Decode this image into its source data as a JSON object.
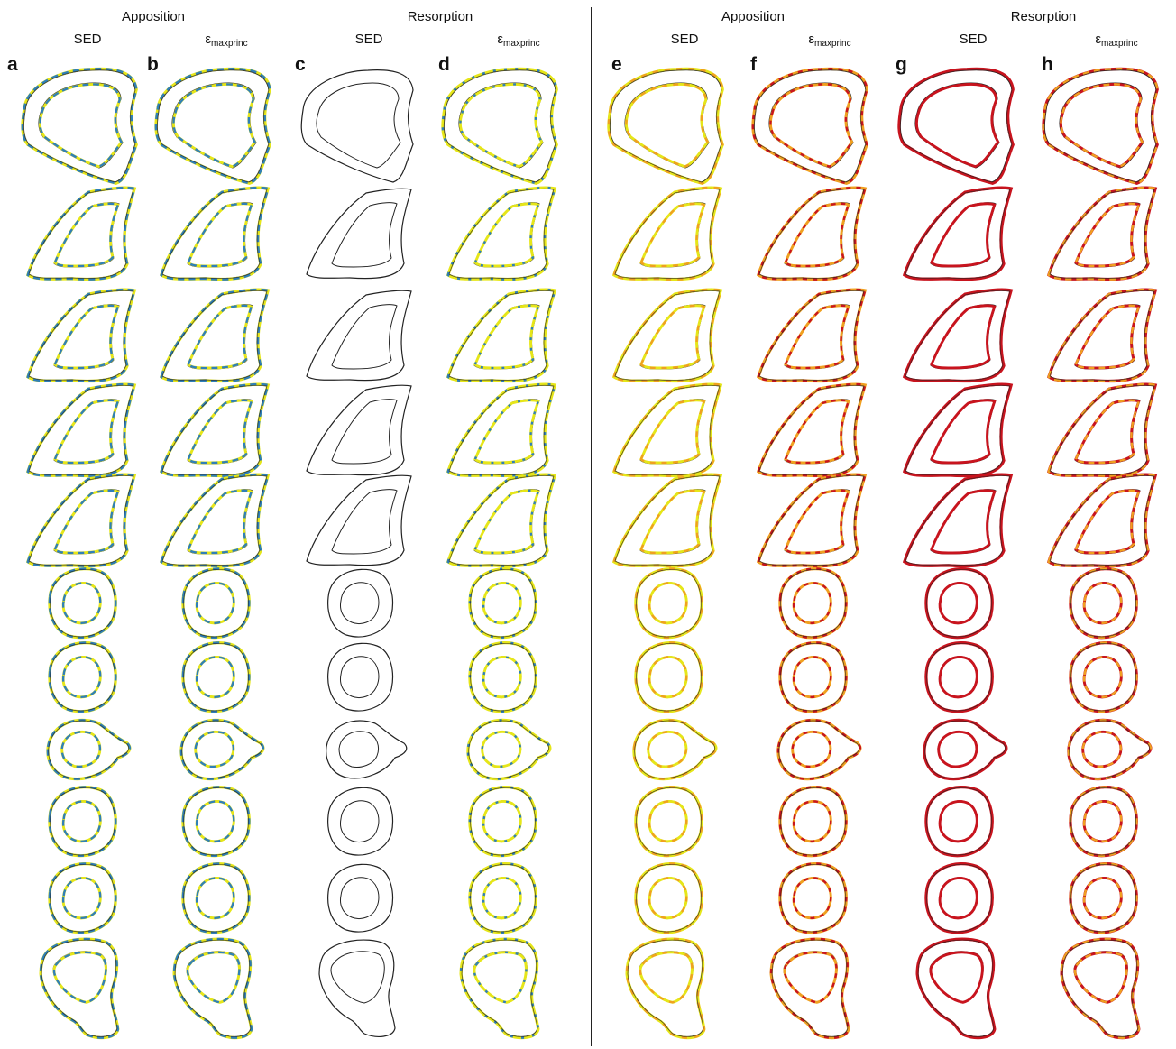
{
  "headers": {
    "left": {
      "apposition": "Apposition",
      "resorption": "Resorption"
    },
    "right": {
      "apposition": "Apposition",
      "resorption": "Resorption"
    }
  },
  "columns": [
    {
      "letter": "a",
      "metric": "SED",
      "metric_sub": ""
    },
    {
      "letter": "b",
      "metric": "ε",
      "metric_sub": "maxprinc"
    },
    {
      "letter": "c",
      "metric": "SED",
      "metric_sub": ""
    },
    {
      "letter": "d",
      "metric": "ε",
      "metric_sub": "maxprinc"
    },
    {
      "letter": "e",
      "metric": "SED",
      "metric_sub": ""
    },
    {
      "letter": "f",
      "metric": "ε",
      "metric_sub": "maxprinc"
    },
    {
      "letter": "g",
      "metric": "SED",
      "metric_sub": ""
    },
    {
      "letter": "h",
      "metric": "ε",
      "metric_sub": "maxprinc"
    }
  ],
  "colors": {
    "outline": "#222222",
    "blue": "#2f7fb8",
    "yellow": "#e6e619",
    "orange": "#f0a020",
    "red": "#c8141e"
  },
  "column_styles": [
    "blue-yellow",
    "blue-yellow",
    "plain",
    "blue-yellow-light",
    "yellow-orange",
    "orange-red",
    "red",
    "red-orange"
  ],
  "row_shapes": [
    "head",
    "triangle",
    "triangle",
    "triangle",
    "triangle",
    "oval",
    "oval",
    "oval-tail",
    "oval",
    "oval",
    "condyle"
  ]
}
